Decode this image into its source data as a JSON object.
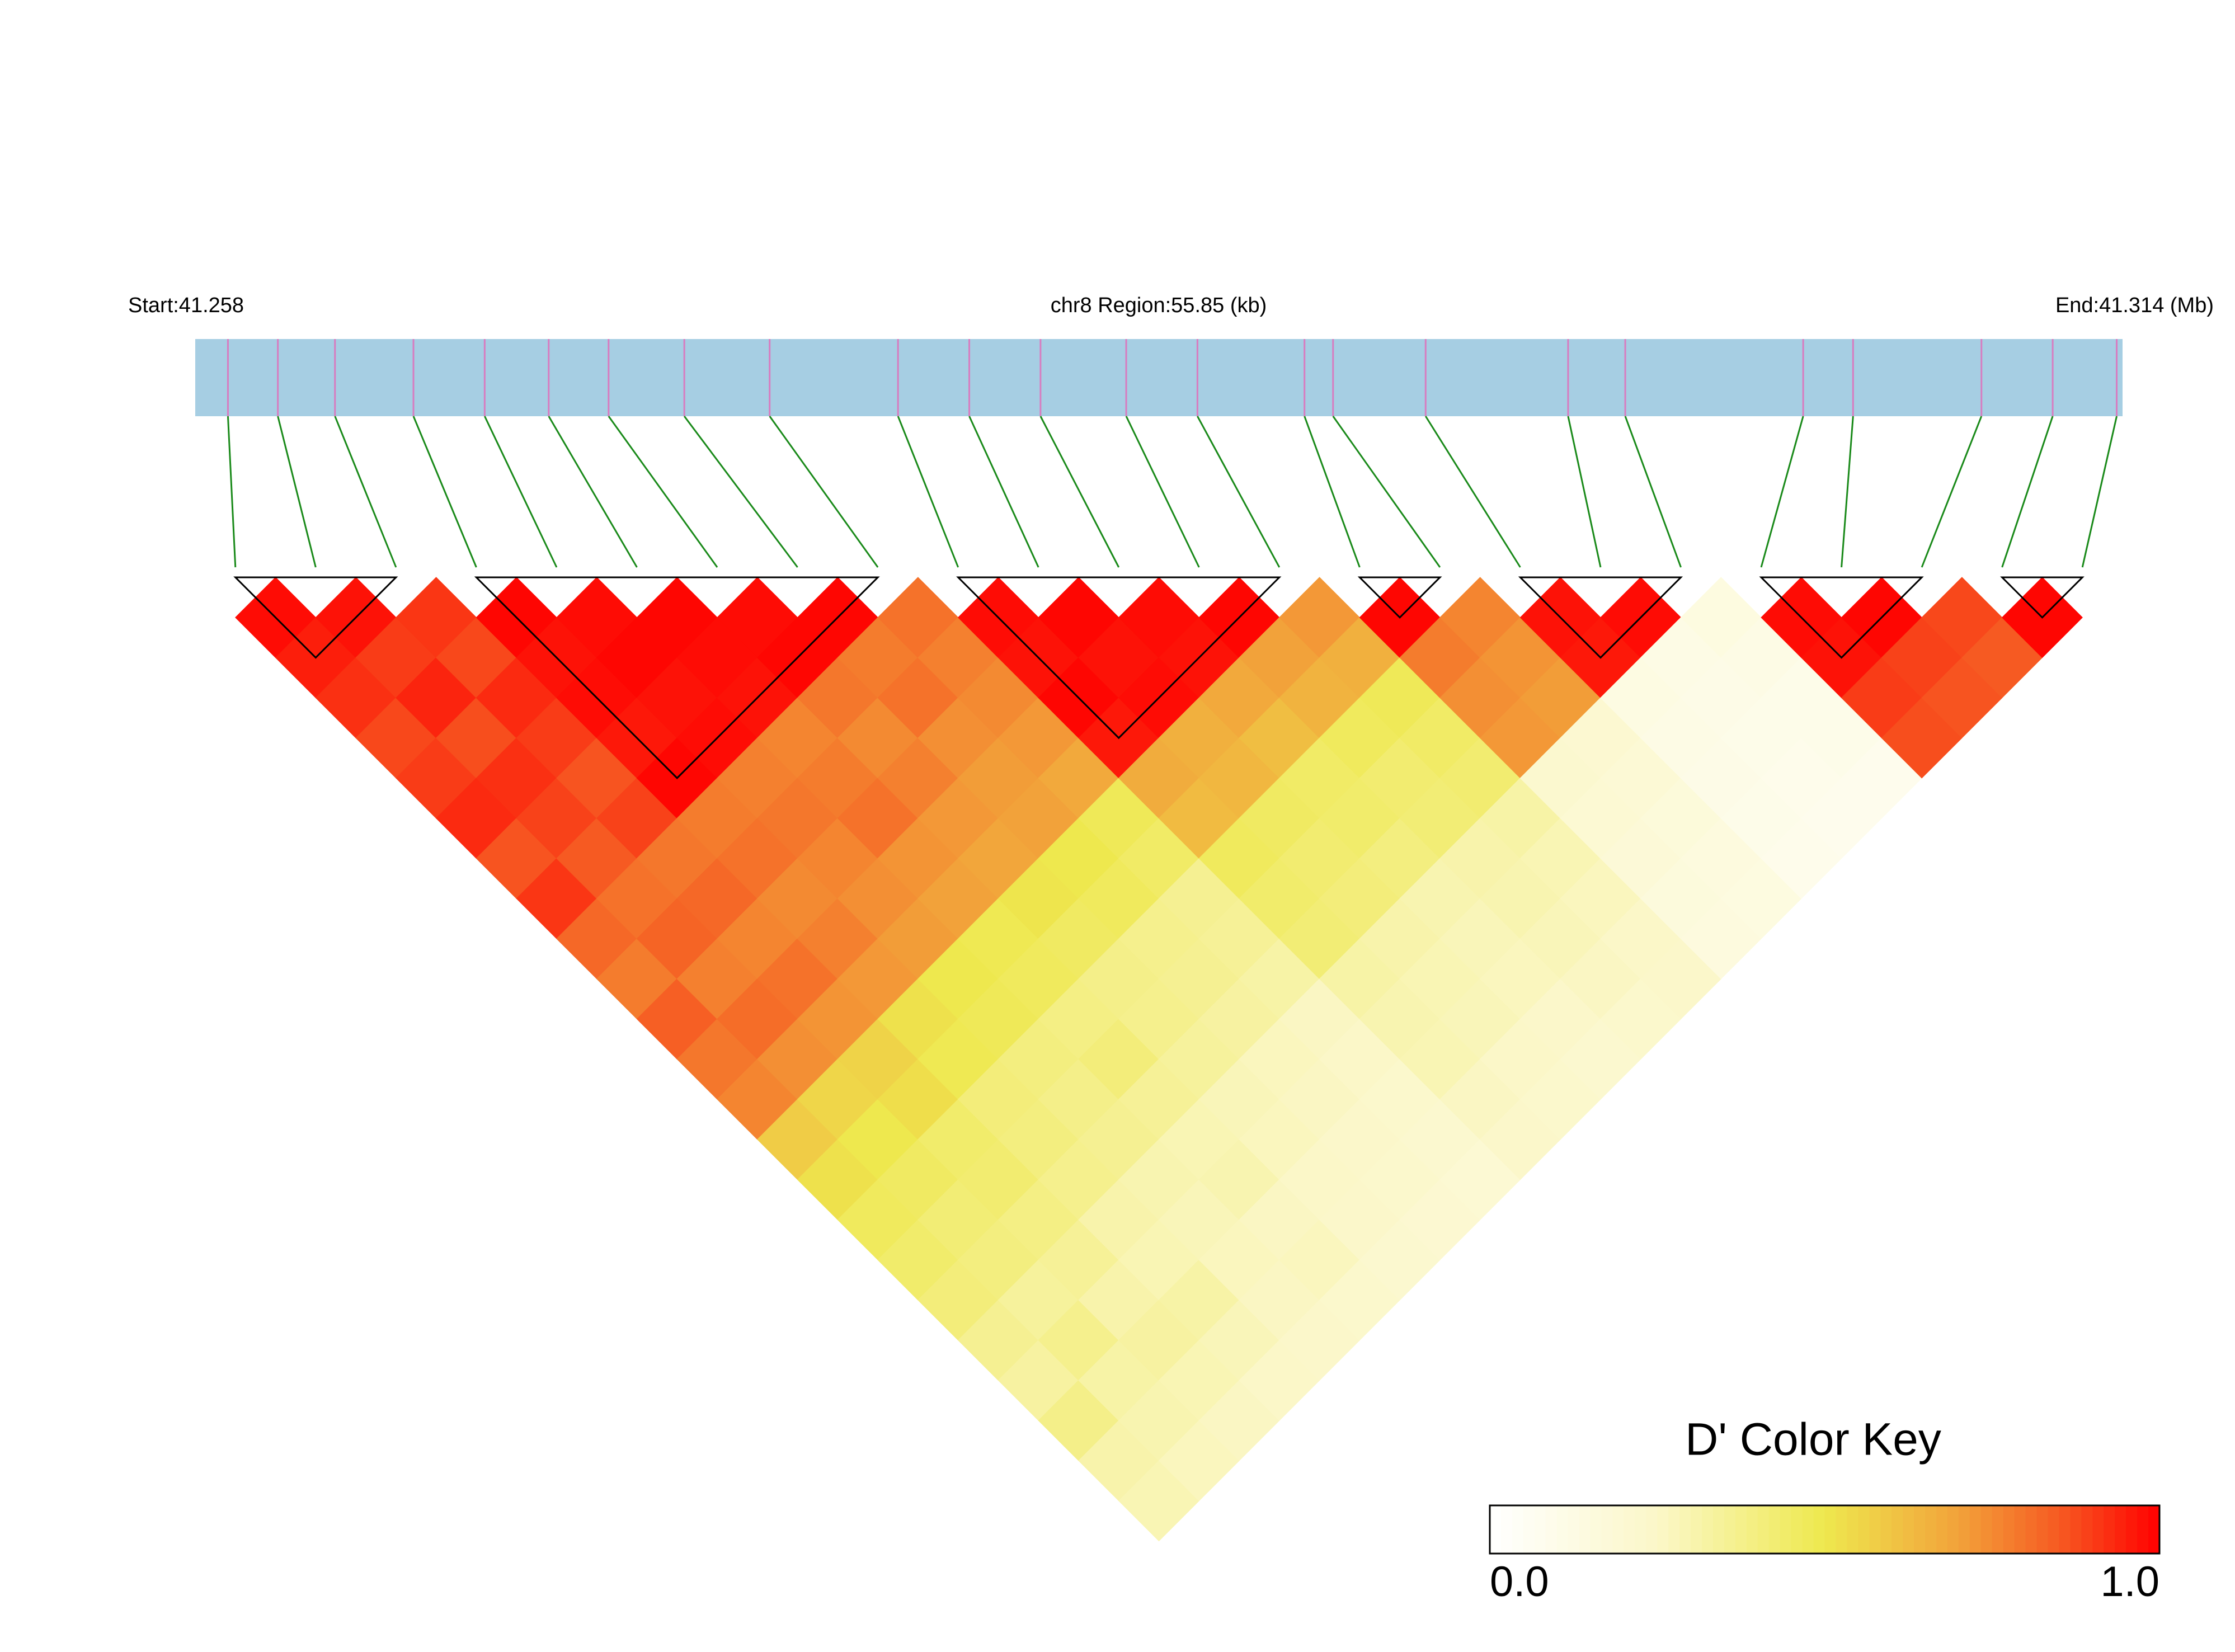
{
  "chart_data": {
    "type": "heatmap",
    "start_label": "Start:41.258",
    "region_label": "chr8 Region:55.85 (kb)",
    "end_label": "End:41.314 (Mb)",
    "xlim": [
      41.258,
      41.314
    ],
    "snp_positions": [
      41.25895,
      41.2604,
      41.26206,
      41.26434,
      41.26641,
      41.26827,
      41.27001,
      41.27221,
      41.27469,
      41.27842,
      41.28049,
      41.28256,
      41.28505,
      41.28712,
      41.29023,
      41.29106,
      41.29375,
      41.29789,
      41.29955,
      41.30472,
      41.30617,
      41.3099,
      41.31197,
      41.31383
    ],
    "bar_color": "#a6cee3",
    "snp_line_color": "#d87cc0",
    "connector_color": "#1a8a1a",
    "ld": [
      [
        0.98,
        0.95,
        0.92,
        0.88,
        0.9,
        0.93,
        0.86,
        0.91,
        0.82,
        0.78,
        0.84,
        0.79,
        0.76,
        0.58,
        0.52,
        0.47,
        0.44,
        0.41,
        0.36,
        0.33,
        0.38,
        0.31,
        0.29
      ],
      [
        0.97,
        0.9,
        0.94,
        0.87,
        0.92,
        0.89,
        0.85,
        0.8,
        0.83,
        0.77,
        0.81,
        0.74,
        0.55,
        0.5,
        0.46,
        0.42,
        0.4,
        0.34,
        0.37,
        0.32,
        0.3,
        0.27
      ],
      [
        0.91,
        0.88,
        0.93,
        0.9,
        0.86,
        0.89,
        0.79,
        0.82,
        0.76,
        0.8,
        0.73,
        0.56,
        0.53,
        0.44,
        0.43,
        0.39,
        0.35,
        0.31,
        0.33,
        0.29,
        0.26
      ],
      [
        0.99,
        0.97,
        0.98,
        0.96,
        0.99,
        0.78,
        0.8,
        0.75,
        0.77,
        0.72,
        0.52,
        0.49,
        0.41,
        0.4,
        0.37,
        0.31,
        0.29,
        0.32,
        0.28,
        0.25
      ],
      [
        0.98,
        0.99,
        0.97,
        0.98,
        0.77,
        0.79,
        0.76,
        0.74,
        0.71,
        0.5,
        0.48,
        0.4,
        0.38,
        0.36,
        0.3,
        0.28,
        0.27,
        0.26,
        0.24
      ],
      [
        0.99,
        0.98,
        0.97,
        0.76,
        0.78,
        0.8,
        0.73,
        0.7,
        0.49,
        0.47,
        0.39,
        0.41,
        0.35,
        0.29,
        0.3,
        0.26,
        0.27,
        0.23
      ],
      [
        0.98,
        0.99,
        0.79,
        0.75,
        0.77,
        0.72,
        0.69,
        0.51,
        0.46,
        0.38,
        0.37,
        0.34,
        0.28,
        0.27,
        0.25,
        0.24,
        0.22
      ],
      [
        0.99,
        0.78,
        0.8,
        0.74,
        0.71,
        0.7,
        0.5,
        0.47,
        0.37,
        0.36,
        0.33,
        0.27,
        0.26,
        0.24,
        0.23,
        0.21
      ],
      [
        0.8,
        0.77,
        0.75,
        0.72,
        0.68,
        0.48,
        0.45,
        0.36,
        0.35,
        0.32,
        0.26,
        0.25,
        0.23,
        0.22,
        0.2
      ],
      [
        0.98,
        0.97,
        0.99,
        0.96,
        0.67,
        0.63,
        0.47,
        0.44,
        0.42,
        0.32,
        0.3,
        0.29,
        0.26,
        0.24
      ],
      [
        0.99,
        0.97,
        0.98,
        0.66,
        0.64,
        0.46,
        0.43,
        0.41,
        0.31,
        0.29,
        0.28,
        0.25,
        0.23
      ],
      [
        0.98,
        0.97,
        0.68,
        0.62,
        0.45,
        0.44,
        0.4,
        0.3,
        0.28,
        0.27,
        0.24,
        0.22
      ],
      [
        0.99,
        0.7,
        0.65,
        0.47,
        0.43,
        0.42,
        0.31,
        0.3,
        0.28,
        0.26,
        0.23
      ],
      [
        0.72,
        0.66,
        0.48,
        0.45,
        0.43,
        0.32,
        0.29,
        0.27,
        0.25,
        0.24
      ],
      [
        0.99,
        0.78,
        0.74,
        0.72,
        0.22,
        0.2,
        0.18,
        0.16,
        0.15
      ],
      [
        0.76,
        0.73,
        0.71,
        0.21,
        0.19,
        0.17,
        0.15,
        0.14
      ],
      [
        0.97,
        0.96,
        0.13,
        0.12,
        0.11,
        0.1,
        0.09
      ],
      [
        0.98,
        0.12,
        0.11,
        0.1,
        0.09,
        0.08
      ],
      [
        0.14,
        0.12,
        0.1,
        0.1,
        0.08
      ],
      [
        0.98,
        0.97,
        0.9,
        0.87
      ],
      [
        0.99,
        0.89,
        0.86
      ],
      [
        0.88,
        0.85
      ],
      [
        0.99
      ]
    ],
    "blocks": [
      [
        0,
        2
      ],
      [
        3,
        8
      ],
      [
        9,
        13
      ],
      [
        14,
        15
      ],
      [
        16,
        18
      ],
      [
        19,
        21
      ],
      [
        22,
        23
      ]
    ],
    "color_stops": [
      [
        0,
        "#ffffff"
      ],
      [
        0.25,
        "#fbf7c8"
      ],
      [
        0.5,
        "#eee84e"
      ],
      [
        0.7,
        "#f2a23a"
      ],
      [
        0.85,
        "#f65a22"
      ],
      [
        1,
        "#ff0000"
      ]
    ],
    "color_key": {
      "title": "D' Color Key",
      "range": [
        0,
        1
      ],
      "ticks": [
        {
          "value": 0,
          "label": "0.0"
        },
        {
          "value": 1,
          "label": "1.0"
        }
      ]
    }
  }
}
